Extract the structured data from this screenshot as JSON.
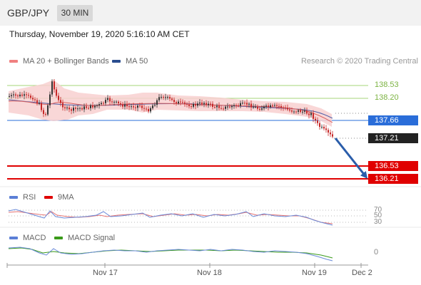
{
  "header": {
    "symbol": "GBP/JPY",
    "timeframe": "30 MIN"
  },
  "timestamp": "Thursday, November 19, 2020 5:16:10 AM CET",
  "legend": {
    "ma_bb": {
      "label": "MA 20 + Bollinger Bands",
      "color": "#f08080"
    },
    "ma50": {
      "label": "MA 50",
      "color": "#2a4d8f"
    },
    "rsi": {
      "label": "RSI",
      "color": "#5b7fd6"
    },
    "rsi_ma": {
      "label": "9MA",
      "color": "#e00000"
    },
    "macd": {
      "label": "MACD",
      "color": "#5b7fd6"
    },
    "macd_signal": {
      "label": "MACD Signal",
      "color": "#3a9a1a"
    }
  },
  "source": "Research © 2020 Trading Central",
  "levels": {
    "r2": "138.53",
    "r1": "138.20",
    "pivot": "137.66",
    "last": "137.21",
    "s1": "136.53",
    "s2": "136.21"
  },
  "colors": {
    "resistance": "#7cb342",
    "pivot": "#2a6dd9",
    "support": "#e00000",
    "last": "#222222",
    "arrow": "#2a5daa",
    "candle_up": "#333333",
    "candle_down": "#c62828"
  },
  "rsi_levels": [
    "70",
    "50",
    "30"
  ],
  "macd_level": "0",
  "x_labels": [
    "Nov 17",
    "Nov 18",
    "Nov 19",
    "Dec 2"
  ],
  "chart_data": {
    "type": "line",
    "title": "GBP/JPY 30 MIN",
    "y_levels": [
      138.53,
      138.2,
      137.66,
      137.21,
      136.53,
      136.21
    ],
    "x_ticks": [
      "Nov 17",
      "Nov 18",
      "Nov 19",
      "Dec 2"
    ],
    "series": [
      {
        "name": "MA 20 + Bollinger Bands"
      },
      {
        "name": "MA 50"
      }
    ],
    "forecast": {
      "from": 137.21,
      "to": 136.21,
      "direction": "down"
    },
    "rsi": {
      "levels": [
        70,
        50,
        30
      ],
      "series": [
        {
          "name": "RSI"
        },
        {
          "name": "9MA"
        }
      ]
    },
    "macd": {
      "zero_line": 0,
      "series": [
        {
          "name": "MACD"
        },
        {
          "name": "MACD Signal"
        }
      ]
    }
  }
}
